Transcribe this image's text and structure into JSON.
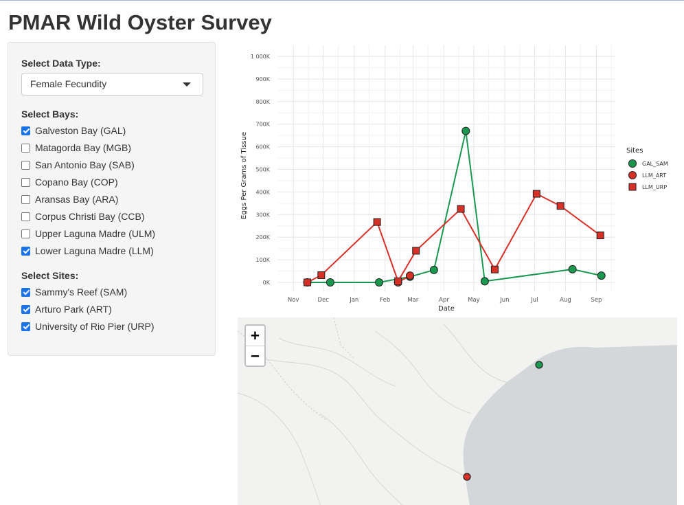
{
  "app": {
    "title": "PMAR Wild Oyster Survey"
  },
  "sidebar": {
    "data_type_label": "Select Data Type:",
    "data_type_value": "Female Fecundity",
    "bays_label": "Select Bays:",
    "bays": [
      {
        "label": "Galveston Bay (GAL)",
        "checked": true
      },
      {
        "label": "Matagorda Bay (MGB)",
        "checked": false
      },
      {
        "label": "San Antonio Bay (SAB)",
        "checked": false
      },
      {
        "label": "Copano Bay (COP)",
        "checked": false
      },
      {
        "label": "Aransas Bay (ARA)",
        "checked": false
      },
      {
        "label": "Corpus Christi Bay (CCB)",
        "checked": false
      },
      {
        "label": "Upper Laguna Madre (ULM)",
        "checked": false
      },
      {
        "label": "Lower Laguna Madre (LLM)",
        "checked": true
      }
    ],
    "sites_label": "Select Sites:",
    "sites": [
      {
        "label": "Sammy's Reef (SAM)",
        "checked": true
      },
      {
        "label": "Arturo Park (ART)",
        "checked": true
      },
      {
        "label": "University of Rio Pier (URP)",
        "checked": true
      }
    ],
    "checkbox_color": "#1a73e8"
  },
  "chart_data": {
    "type": "line",
    "xlabel": "Date",
    "ylabel": "Eggs Per Grams of Tissue",
    "x_ticks": [
      "Nov",
      "Dec",
      "Jan",
      "Feb",
      "Mar",
      "Apr",
      "May",
      "Jun",
      "Jul",
      "Aug",
      "Sep"
    ],
    "y_ticks": [
      "0K",
      "100K",
      "200K",
      "300K",
      "400K",
      "500K",
      "600K",
      "700K",
      "800K",
      "900K",
      "1 000K"
    ],
    "ylim": [
      0,
      1000000
    ],
    "grid": true,
    "legend_title": "Sites",
    "legend_position": "right",
    "series": [
      {
        "name": "GAL_SAM",
        "color": "#1a9850",
        "marker": "circle",
        "points": [
          {
            "x": "2022-11-15",
            "y": 0
          },
          {
            "x": "2022-12-08",
            "y": 0
          },
          {
            "x": "2023-01-26",
            "y": 0
          },
          {
            "x": "2023-02-26",
            "y": 25000
          },
          {
            "x": "2023-03-22",
            "y": 55000
          },
          {
            "x": "2023-04-23",
            "y": 670000
          },
          {
            "x": "2023-05-12",
            "y": 5000
          },
          {
            "x": "2023-08-08",
            "y": 58000
          },
          {
            "x": "2023-09-06",
            "y": 30000
          }
        ]
      },
      {
        "name": "LLM_ART",
        "color": "#d73027",
        "marker": "circle",
        "points": [
          {
            "x": "2023-02-14",
            "y": 0
          },
          {
            "x": "2023-02-26",
            "y": 30000
          }
        ]
      },
      {
        "name": "LLM_URP",
        "color": "#d73027",
        "marker": "square",
        "points": [
          {
            "x": "2022-11-15",
            "y": 0
          },
          {
            "x": "2022-11-29",
            "y": 32000
          },
          {
            "x": "2023-01-24",
            "y": 267000
          },
          {
            "x": "2023-02-14",
            "y": 5000
          },
          {
            "x": "2023-03-04",
            "y": 140000
          },
          {
            "x": "2023-04-18",
            "y": 325000
          },
          {
            "x": "2023-05-22",
            "y": 57000
          },
          {
            "x": "2023-07-03",
            "y": 392000
          },
          {
            "x": "2023-07-27",
            "y": 338000
          },
          {
            "x": "2023-09-05",
            "y": 208000
          }
        ]
      }
    ]
  },
  "map": {
    "zoom_in_label": "+",
    "zoom_out_label": "−",
    "markers": [
      {
        "site": "GAL_SAM",
        "color": "#1a9850"
      },
      {
        "site": "LLM",
        "color": "#d73027"
      }
    ],
    "land_color": "#f2f2f0",
    "water_color": "#d3d7da"
  }
}
